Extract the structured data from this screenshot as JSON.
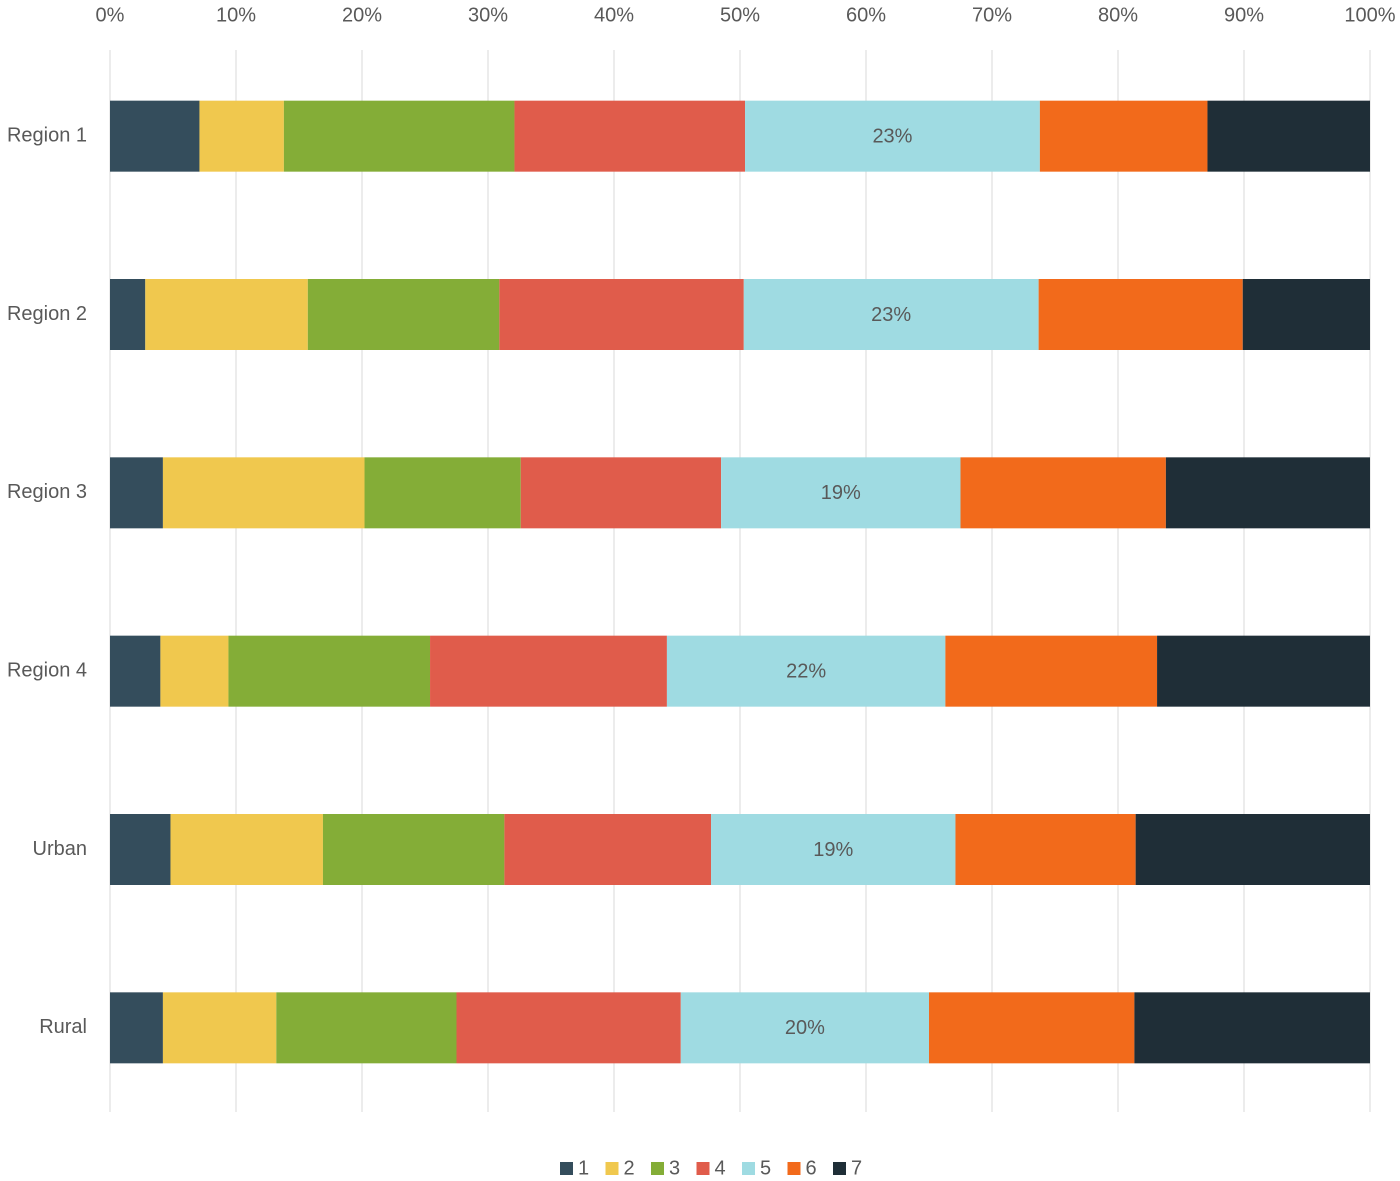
{
  "chart_data": {
    "type": "stacked_bar_horizontal",
    "categories": [
      "Region 1",
      "Region 2",
      "Region 3",
      "Region 4",
      "Urban",
      "Rural"
    ],
    "series": [
      {
        "name": "1",
        "color": "#344d5c",
        "values": [
          7.1,
          2.8,
          4.2,
          4.0,
          4.8,
          4.2
        ]
      },
      {
        "name": "2",
        "color": "#f0c84e",
        "values": [
          6.7,
          12.9,
          16.0,
          5.4,
          12.1,
          9.0
        ]
      },
      {
        "name": "3",
        "color": "#84ad37",
        "values": [
          18.3,
          15.2,
          12.4,
          16.0,
          14.4,
          14.3
        ]
      },
      {
        "name": "4",
        "color": "#e05c4b",
        "values": [
          18.3,
          19.4,
          15.9,
          18.8,
          16.4,
          17.8
        ]
      },
      {
        "name": "5",
        "color": "#9fdbe2",
        "values": [
          23.4,
          23.4,
          19.0,
          22.1,
          19.4,
          19.7
        ],
        "value_labels": [
          "23%",
          "23%",
          "19%",
          "22%",
          "19%",
          "20%"
        ]
      },
      {
        "name": "6",
        "color": "#f26a1b",
        "values": [
          13.3,
          16.2,
          16.3,
          16.8,
          14.3,
          16.3
        ]
      },
      {
        "name": "7",
        "color": "#1f2e37",
        "values": [
          12.9,
          10.1,
          16.2,
          16.9,
          18.6,
          18.7
        ]
      }
    ],
    "xlim": [
      0,
      100
    ],
    "xticks": [
      {
        "value": 0,
        "label": "0%"
      },
      {
        "value": 10,
        "label": "10%"
      },
      {
        "value": 20,
        "label": "20%"
      },
      {
        "value": 30,
        "label": "30%"
      },
      {
        "value": 40,
        "label": "40%"
      },
      {
        "value": 50,
        "label": "50%"
      },
      {
        "value": 60,
        "label": "60%"
      },
      {
        "value": 70,
        "label": "70%"
      },
      {
        "value": 80,
        "label": "80%"
      },
      {
        "value": 90,
        "label": "90%"
      },
      {
        "value": 100,
        "label": "100%"
      }
    ],
    "grid": true,
    "legend": "bottom"
  }
}
